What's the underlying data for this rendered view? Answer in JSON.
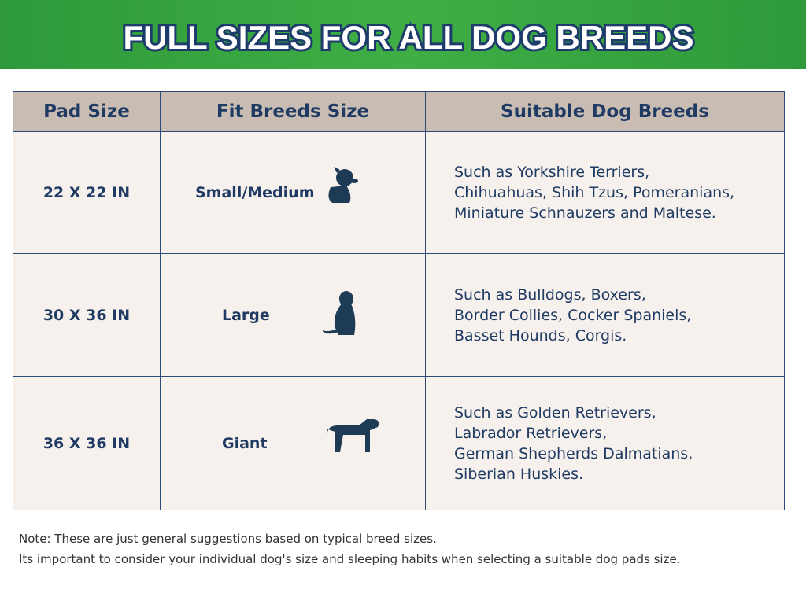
{
  "header": {
    "title": "FULL SIZES FOR ALL DOG BREEDS"
  },
  "table": {
    "columns": [
      "Pad Size",
      "Fit Breeds Size",
      "Suitable Dog Breeds"
    ],
    "rows": [
      {
        "pad_size": "22 X 22 IN",
        "fit_size": "Small/Medium",
        "breeds": [
          "Such as Yorkshire Terriers,",
          "Chihuahuas, Shih Tzus, Pomeranians,",
          "Miniature Schnauzers and Maltese."
        ]
      },
      {
        "pad_size": "30 X 36 IN",
        "fit_size": "Large",
        "breeds": [
          "Such as Bulldogs, Boxers,",
          "Border Collies, Cocker Spaniels,",
          "Basset Hounds, Corgis."
        ]
      },
      {
        "pad_size": "36 X 36 IN",
        "fit_size": "Giant",
        "breeds": [
          "Such as Golden Retrievers,",
          "Labrador Retrievers,",
          "German  Shepherds Dalmatians,",
          "Siberian Huskies."
        ]
      }
    ]
  },
  "notes": [
    "Note: These are just general suggestions based on typical breed sizes.",
    "Its important to consider your individual dog's size and sleeping habits when selecting a suitable dog pads size."
  ]
}
